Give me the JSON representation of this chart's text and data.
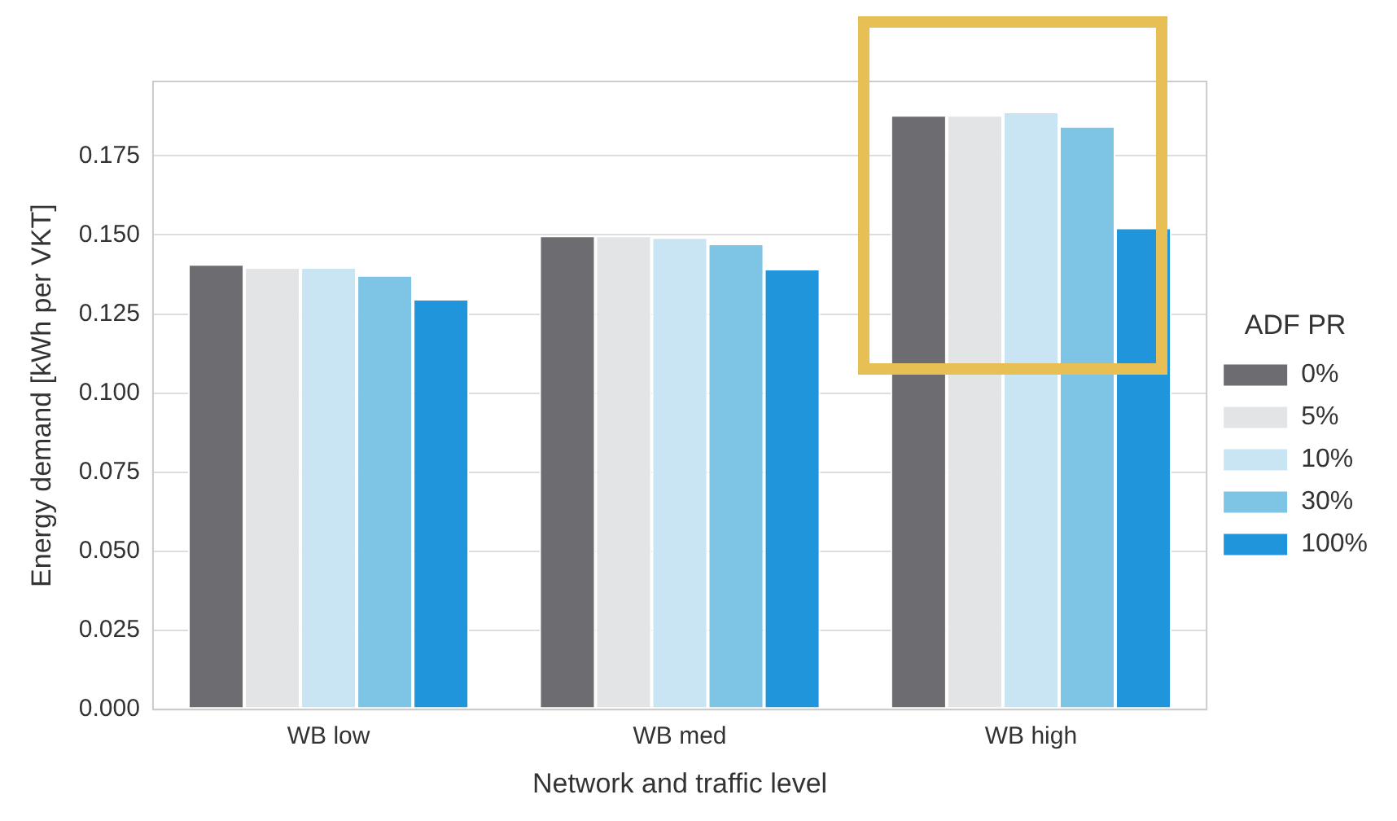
{
  "chart_data": {
    "type": "bar",
    "xlabel": "Network and traffic level",
    "ylabel": "Energy demand [kWh per VKT]",
    "legend_title": "ADF PR",
    "categories": [
      "WB low",
      "WB med",
      "WB high"
    ],
    "series": [
      {
        "name": "0%",
        "color": "#6d6c70",
        "values": [
          0.1408,
          0.1498,
          0.1879
        ]
      },
      {
        "name": "5%",
        "color": "#e3e4e6",
        "values": [
          0.1398,
          0.1498,
          0.1879
        ]
      },
      {
        "name": "10%",
        "color": "#c9e5f3",
        "values": [
          0.1398,
          0.1493,
          0.189
        ]
      },
      {
        "name": "30%",
        "color": "#7ec4e4",
        "values": [
          0.1373,
          0.1473,
          0.1844
        ]
      },
      {
        "name": "100%",
        "color": "#2195dc",
        "values": [
          0.1298,
          0.1393,
          0.1523
        ]
      }
    ],
    "ylim": [
      0,
      0.1985
    ],
    "yticks": [
      {
        "value": 0,
        "label": "0.000"
      },
      {
        "value": 0.025,
        "label": "0.025"
      },
      {
        "value": 0.05,
        "label": "0.050"
      },
      {
        "value": 0.075,
        "label": "0.075"
      },
      {
        "value": 0.1,
        "label": "0.100"
      },
      {
        "value": 0.125,
        "label": "0.125"
      },
      {
        "value": 0.15,
        "label": "0.150"
      },
      {
        "value": 0.175,
        "label": "0.175"
      }
    ],
    "grid": "y",
    "legend": "right"
  }
}
